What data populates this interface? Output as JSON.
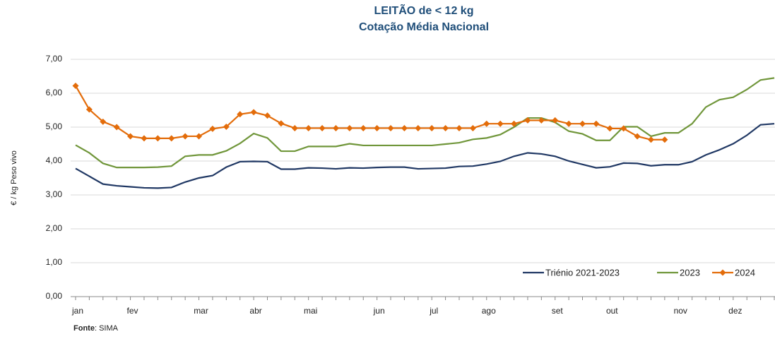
{
  "chart_data": {
    "type": "line",
    "title": "LEITÃO de < 12 kg",
    "subtitle": "Cotação Média Nacional",
    "y_label": "€ / kg Peso vivo",
    "source_label": "Fonte",
    "source_text": ": SIMA",
    "categories": [
      "jan",
      null,
      null,
      null,
      "fev",
      null,
      null,
      null,
      null,
      "mar",
      null,
      null,
      null,
      "abr",
      null,
      null,
      null,
      "mai",
      null,
      null,
      null,
      null,
      "jun",
      null,
      null,
      null,
      "jul",
      null,
      null,
      null,
      "ago",
      null,
      null,
      null,
      null,
      "set",
      null,
      null,
      null,
      "out",
      null,
      null,
      null,
      null,
      "nov",
      null,
      null,
      null,
      "dez",
      null,
      null,
      null
    ],
    "ylim": [
      0,
      7
    ],
    "yticks": [
      {
        "value": 0,
        "label": "0,00"
      },
      {
        "value": 1,
        "label": "1,00"
      },
      {
        "value": 2,
        "label": "2,00"
      },
      {
        "value": 3,
        "label": "3,00"
      },
      {
        "value": 4,
        "label": "4,00"
      },
      {
        "value": 5,
        "label": "5,00"
      },
      {
        "value": 6,
        "label": "6,00"
      },
      {
        "value": 7,
        "label": "7,00"
      }
    ],
    "grid": true,
    "legend": "bottom-right",
    "series": [
      {
        "name": "Triénio 2021-2023",
        "color": "#203864",
        "marker": false,
        "values": [
          3.78,
          3.55,
          3.32,
          3.27,
          3.24,
          3.21,
          3.2,
          3.22,
          3.38,
          3.5,
          3.57,
          3.82,
          3.98,
          3.99,
          3.98,
          3.76,
          3.76,
          3.8,
          3.79,
          3.77,
          3.8,
          3.79,
          3.81,
          3.82,
          3.82,
          3.77,
          3.78,
          3.79,
          3.84,
          3.85,
          3.91,
          3.99,
          4.14,
          4.24,
          4.21,
          4.14,
          4.0,
          3.9,
          3.8,
          3.83,
          3.94,
          3.93,
          3.86,
          3.89,
          3.89,
          3.98,
          4.18,
          4.33,
          4.51,
          4.76,
          5.07,
          5.1
        ]
      },
      {
        "name": "2023",
        "color": "#70963a",
        "marker": false,
        "values": [
          4.47,
          4.24,
          3.93,
          3.81,
          3.81,
          3.81,
          3.82,
          3.85,
          4.14,
          4.18,
          4.18,
          4.3,
          4.52,
          4.81,
          4.68,
          4.29,
          4.29,
          4.43,
          4.43,
          4.43,
          4.51,
          4.46,
          4.46,
          4.46,
          4.46,
          4.46,
          4.46,
          4.5,
          4.54,
          4.64,
          4.68,
          4.78,
          5.0,
          5.27,
          5.27,
          5.14,
          4.88,
          4.8,
          4.61,
          4.61,
          5.01,
          5.01,
          4.73,
          4.83,
          4.83,
          5.1,
          5.59,
          5.81,
          5.88,
          6.11,
          6.39,
          6.45
        ]
      },
      {
        "name": "2024",
        "color": "#e36c0a",
        "marker": true,
        "values": [
          6.22,
          5.52,
          5.16,
          5.0,
          4.73,
          4.67,
          4.67,
          4.67,
          4.73,
          4.73,
          4.95,
          5.01,
          5.38,
          5.44,
          5.34,
          5.11,
          4.97,
          4.97,
          4.97,
          4.97,
          4.97,
          4.97,
          4.97,
          4.97,
          4.97,
          4.97,
          4.97,
          4.97,
          4.97,
          4.97,
          5.1,
          5.1,
          5.1,
          5.2,
          5.2,
          5.2,
          5.1,
          5.1,
          5.1,
          4.96,
          4.96,
          4.73,
          4.63,
          4.63,
          null,
          null,
          null,
          null,
          null,
          null,
          null,
          null
        ]
      }
    ]
  }
}
